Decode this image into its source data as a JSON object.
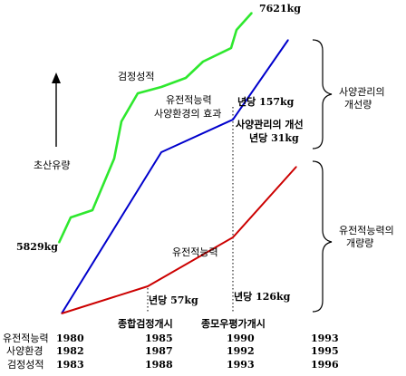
{
  "chart_data": {
    "type": "line",
    "series": [
      {
        "name": "검정성적",
        "color": "#2ee82e",
        "points": [
          [
            65,
            268
          ],
          [
            78,
            240
          ],
          [
            102,
            232
          ],
          [
            126,
            175
          ],
          [
            134,
            134
          ],
          [
            152,
            103
          ],
          [
            178,
            96
          ],
          [
            205,
            86
          ],
          [
            224,
            68
          ],
          [
            255,
            53
          ],
          [
            261,
            33
          ],
          [
            278,
            14
          ]
        ]
      },
      {
        "name": "유전적능력 + 사양환경의 효과",
        "color": "#0000cc",
        "points": [
          [
            68,
            346
          ],
          [
            178,
            168
          ],
          [
            257,
            132
          ],
          [
            318,
            44
          ]
        ]
      },
      {
        "name": "유전적능력",
        "color": "#cc0000",
        "points": [
          [
            68,
            346
          ],
          [
            163,
            316
          ],
          [
            257,
            262
          ],
          [
            327,
            184
          ]
        ]
      }
    ],
    "labels": {
      "top_value": "7621kg",
      "left_value": "5829kg",
      "y_axis_title": "초산유량",
      "green_series": "검정성적",
      "blue_series_line1": "유전적능력",
      "blue_series_line2": "사양환경의 효과",
      "blue_annual_line1": "년당 157kg",
      "blue_annual_line2": "사양관리의 개선",
      "blue_annual_line3": "년당 31kg",
      "red_series": "유전적능력",
      "red_annual_left": "년당 57kg",
      "red_annual_right": "년당 126kg",
      "event_left": "종합검정개시",
      "event_right": "종모우평가개시",
      "brace_upper_line1": "사양관리의",
      "brace_upper_line2": "개선량",
      "brace_lower_line1": "유전적능력의",
      "brace_lower_line2": "개량량"
    },
    "year_table": {
      "rows": [
        {
          "label": "유전적능력",
          "years": [
            "1980",
            "1985",
            "1990",
            "1993"
          ]
        },
        {
          "label": "사양환경",
          "years": [
            "1982",
            "1987",
            "1992",
            "1995"
          ]
        },
        {
          "label": "검정성적",
          "years": [
            "1983",
            "1988",
            "1993",
            "1996"
          ]
        }
      ]
    }
  }
}
